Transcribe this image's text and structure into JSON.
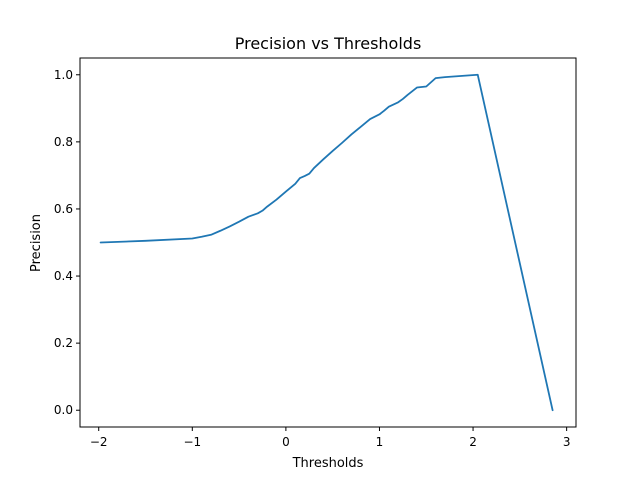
{
  "chart_data": {
    "type": "line",
    "title": "Precision vs Thresholds",
    "xlabel": "Thresholds",
    "ylabel": "Precision",
    "xlim": [
      -2.2,
      3.1
    ],
    "ylim": [
      -0.05,
      1.05
    ],
    "xticks": [
      -2,
      -1,
      0,
      1,
      2,
      3
    ],
    "xtick_labels": [
      "−2",
      "−1",
      "0",
      "1",
      "2",
      "3"
    ],
    "yticks": [
      0.0,
      0.2,
      0.4,
      0.6,
      0.8,
      1.0
    ],
    "ytick_labels": [
      "0.0",
      "0.2",
      "0.4",
      "0.6",
      "0.8",
      "1.0"
    ],
    "grid": false,
    "colors": {
      "series": "#1f77b4"
    },
    "series": [
      {
        "x": [
          -1.98,
          -1.5,
          -1.0,
          -0.9,
          -0.8,
          -0.7,
          -0.6,
          -0.5,
          -0.4,
          -0.3,
          -0.25,
          -0.2,
          -0.1,
          0.0,
          0.1,
          0.15,
          0.2,
          0.25,
          0.3,
          0.4,
          0.5,
          0.6,
          0.7,
          0.8,
          0.9,
          1.0,
          1.05,
          1.1,
          1.2,
          1.25,
          1.3,
          1.4,
          1.5,
          1.6,
          1.7,
          2.05,
          2.85
        ],
        "y": [
          0.5,
          0.505,
          0.512,
          0.517,
          0.523,
          0.535,
          0.548,
          0.562,
          0.577,
          0.587,
          0.595,
          0.607,
          0.628,
          0.652,
          0.675,
          0.692,
          0.698,
          0.705,
          0.722,
          0.748,
          0.773,
          0.797,
          0.822,
          0.845,
          0.868,
          0.882,
          0.893,
          0.905,
          0.918,
          0.928,
          0.94,
          0.962,
          0.965,
          0.99,
          0.993,
          1.0,
          0.0
        ]
      }
    ]
  }
}
